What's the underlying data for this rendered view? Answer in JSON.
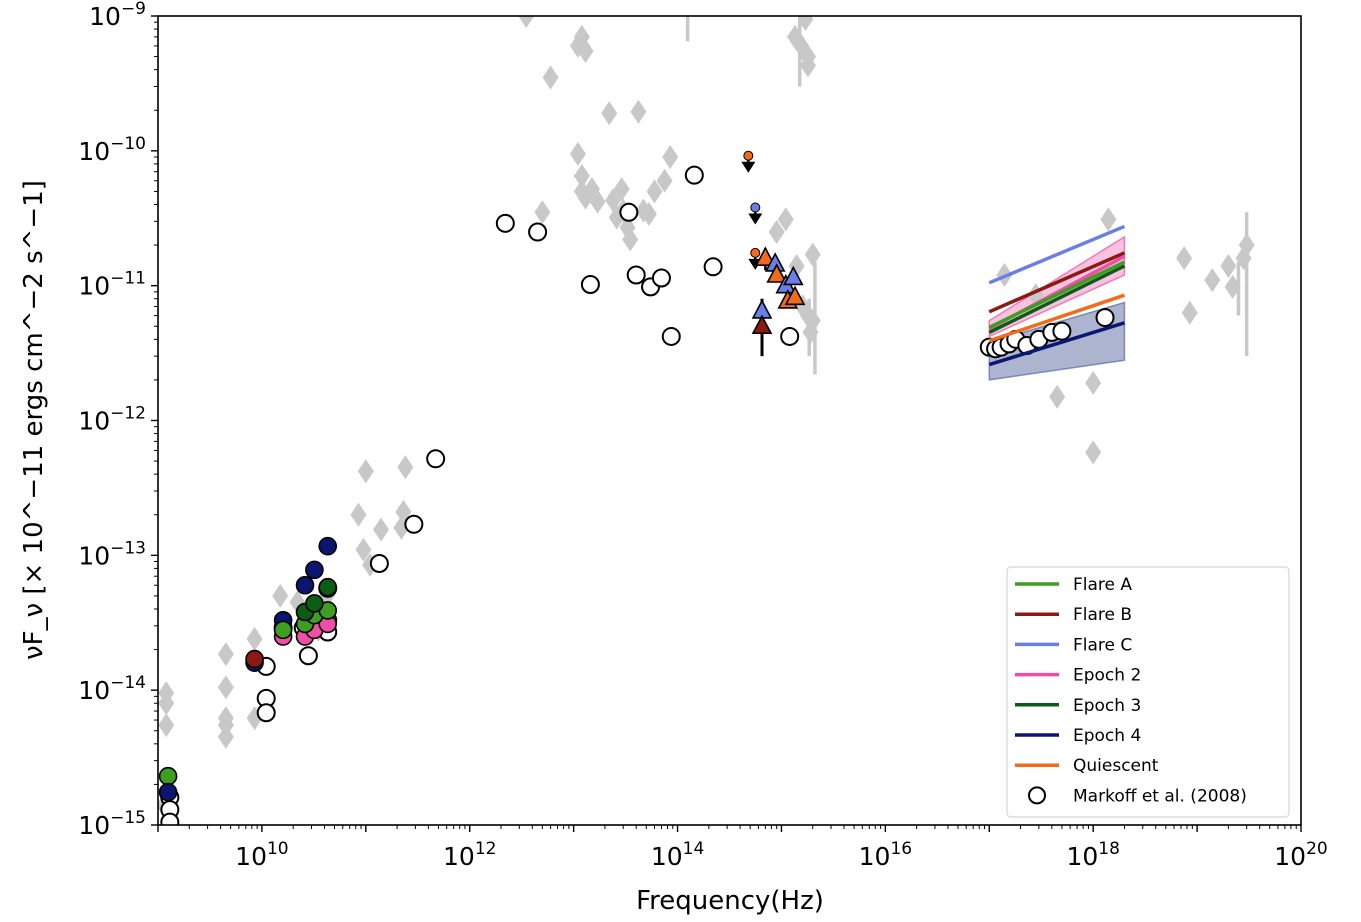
{
  "chart_data": {
    "type": "scatter",
    "xlabel": "Frequency(Hz)",
    "ylabel": "νF_ν [× 10^−11 ergs cm^−2 s^−1]",
    "xscale": "log",
    "yscale": "log",
    "xlim": [
      1000000000.0,
      1e+20
    ],
    "ylim": [
      1e-15,
      1e-09
    ],
    "x_ticks": [
      {
        "base": "10",
        "exp": "10",
        "value": 10000000000.0
      },
      {
        "base": "10",
        "exp": "12",
        "value": 1000000000000.0
      },
      {
        "base": "10",
        "exp": "14",
        "value": 100000000000000.0
      },
      {
        "base": "10",
        "exp": "16",
        "value": 1e+16
      },
      {
        "base": "10",
        "exp": "18",
        "value": 1e+18
      },
      {
        "base": "10",
        "exp": "20",
        "value": 1e+20
      }
    ],
    "y_ticks": [
      {
        "base": "10",
        "exp": "−15",
        "value": 1e-15
      },
      {
        "base": "10",
        "exp": "−14",
        "value": 1e-14
      },
      {
        "base": "10",
        "exp": "−13",
        "value": 1e-13
      },
      {
        "base": "10",
        "exp": "−12",
        "value": 1e-12
      },
      {
        "base": "10",
        "exp": "−11",
        "value": 1e-11
      },
      {
        "base": "10",
        "exp": "−10",
        "value": 1e-10
      },
      {
        "base": "10",
        "exp": "−9",
        "value": 1e-09
      }
    ],
    "legend": {
      "position": "lower right",
      "entries": [
        {
          "label": "Flare A",
          "color": "#3d9e1f",
          "marker": "line"
        },
        {
          "label": "Flare B",
          "color": "#8b1a12",
          "marker": "line"
        },
        {
          "label": "Flare C",
          "color": "#6a7ee8",
          "marker": "line"
        },
        {
          "label": "Epoch 2",
          "color": "#ee4fa6",
          "marker": "line"
        },
        {
          "label": "Epoch 3",
          "color": "#0b5c17",
          "marker": "line"
        },
        {
          "label": "Epoch 4",
          "color": "#0c1670",
          "marker": "line"
        },
        {
          "label": "Quiescent",
          "color": "#f56a1a",
          "marker": "line"
        },
        {
          "label": "Markoff et al. (2008)",
          "color": "#000000",
          "marker": "open-circle"
        }
      ]
    },
    "archival": {
      "color": "#c8c8c8",
      "marker": "diamond",
      "points": [
        [
          1200000000.0,
          9.5e-15
        ],
        [
          1200000000.0,
          8e-15
        ],
        [
          1200000000.0,
          5.5e-15
        ],
        [
          1150000000.0,
          1.4e-15
        ],
        [
          4500000000.0,
          1.85e-14
        ],
        [
          4500000000.0,
          1.05e-14
        ],
        [
          4500000000.0,
          6.2e-15
        ],
        [
          4500000000.0,
          5.5e-15
        ],
        [
          4500000000.0,
          4.5e-15
        ],
        [
          8500000000.0,
          2.4e-14
        ],
        [
          8500000000.0,
          6.2e-15
        ],
        [
          15000000000.0,
          5e-14
        ],
        [
          22000000000.0,
          4.5e-14
        ],
        [
          30000000000.0,
          3.8e-14
        ],
        [
          35000000000.0,
          2.8e-14
        ],
        [
          42000000000.0,
          5e-14
        ],
        [
          85000000000.0,
          2e-13
        ],
        [
          95000000000.0,
          1.1e-13
        ],
        [
          100000000000.0,
          4.2e-13
        ],
        [
          110000000000.0,
          8.5e-14
        ],
        [
          140000000000.0,
          1.55e-13
        ],
        [
          220000000000.0,
          1.6e-13
        ],
        [
          230000000000.0,
          2.1e-13
        ],
        [
          240000000000.0,
          4.5e-13
        ],
        [
          3500000000000.0,
          1e-09
        ],
        [
          6000000000000.0,
          3.5e-10
        ],
        [
          11000000000000.0,
          6e-10
        ],
        [
          12000000000000.0,
          7e-10
        ],
        [
          13000000000000.0,
          5.5e-10
        ],
        [
          11000000000000.0,
          9.5e-11
        ],
        [
          12000000000000.0,
          6.5e-11
        ],
        [
          12000000000000.0,
          5e-11
        ],
        [
          13000000000000.0,
          4.5e-11
        ],
        [
          15000000000000.0,
          5.2e-11
        ],
        [
          17000000000000.0,
          4.2e-11
        ],
        [
          22000000000000.0,
          1.9e-10
        ],
        [
          24000000000000.0,
          4.3e-11
        ],
        [
          26000000000000.0,
          3.2e-11
        ],
        [
          29000000000000.0,
          5.2e-11
        ],
        [
          30000000000000.0,
          3.6e-11
        ],
        [
          33000000000000.0,
          2.7e-11
        ],
        [
          35000000000000.0,
          2.2e-11
        ],
        [
          42000000000000.0,
          1.95e-10
        ],
        [
          47000000000000.0,
          3.6e-11
        ],
        [
          53000000000000.0,
          3.4e-11
        ],
        [
          60000000000000.0,
          5e-11
        ],
        [
          75000000000000.0,
          6e-11
        ],
        [
          85000000000000.0,
          9e-11
        ],
        [
          5000000000000.0,
          3.5e-11
        ],
        [
          900000000000000.0,
          2.5e-11
        ],
        [
          1100000000000000.0,
          3.1e-11
        ],
        [
          1400000000000000.0,
          1.4e-11
        ],
        [
          2000000000000000.0,
          1.7e-11
        ],
        [
          1600000000000000.0,
          7e-12
        ],
        [
          1800000000000000.0,
          6e-12
        ],
        [
          2000000000000000.0,
          5.5e-12
        ],
        [
          1900000000000000.0,
          4.5e-12
        ],
        [
          1350000000000000.0,
          7e-10
        ],
        [
          1550000000000000.0,
          6e-10
        ],
        [
          1700000000000000.0,
          9.5e-10
        ],
        [
          1800000000000000.0,
          5e-10
        ],
        [
          1800000000000000.0,
          4.3e-10
        ],
        [
          1.4e+17,
          1.2e-11
        ],
        [
          2.8e+17,
          8.5e-12
        ],
        [
          4.5e+17,
          1.5e-12
        ],
        [
          1e+18,
          1.9e-12
        ],
        [
          1e+18,
          5.8e-13
        ],
        [
          1.4e+18,
          3.1e-11
        ],
        [
          7.5e+18,
          1.6e-11
        ],
        [
          8.5e+18,
          6.3e-12
        ],
        [
          1.4e+19,
          1.1e-11
        ],
        [
          2e+19,
          1.4e-11
        ],
        [
          2.2e+19,
          9.8e-12
        ],
        [
          2.8e+19,
          1.6e-11
        ],
        [
          3e+19,
          2e-11
        ]
      ],
      "error_bars": [
        [
          1500000000000000.0,
          3e-10,
          1e-09
        ],
        [
          125000000000000.0,
          6.5e-10,
          1e-09
        ],
        [
          2100000000000000.0,
          2.2e-12,
          1.5e-11
        ],
        [
          1850000000000000.0,
          3e-12,
          8e-12
        ],
        [
          3e+19,
          3e-12,
          3.5e-11
        ],
        [
          2.5e+19,
          6e-12,
          1.5e-11
        ]
      ]
    },
    "markoff_2008": [
      [
        1300000000.0,
        1.6e-15
      ],
      [
        1300000000.0,
        1.3e-15
      ],
      [
        1300000000.0,
        1.05e-15
      ],
      [
        11000000000.0,
        1.5e-14
      ],
      [
        11000000000.0,
        8.7e-15
      ],
      [
        11000000000.0,
        6.8e-15
      ],
      [
        16000000000.0,
        2.9e-14
      ],
      [
        25000000000.0,
        2.9e-14
      ],
      [
        28000000000.0,
        1.8e-14
      ],
      [
        32000000000.0,
        3.3e-14
      ],
      [
        43000000000.0,
        5.7e-14
      ],
      [
        43000000000.0,
        3.3e-14
      ],
      [
        43000000000.0,
        2.7e-14
      ],
      [
        135000000000.0,
        8.7e-14
      ],
      [
        290000000000.0,
        1.7e-13
      ],
      [
        470000000000.0,
        5.2e-13
      ],
      [
        2200000000000.0,
        2.9e-11
      ],
      [
        4500000000000.0,
        2.5e-11
      ],
      [
        14500000000000.0,
        1.02e-11
      ],
      [
        34000000000000.0,
        3.5e-11
      ],
      [
        40000000000000.0,
        1.2e-11
      ],
      [
        55000000000000.0,
        9.8e-12
      ],
      [
        70000000000000.0,
        1.14e-11
      ],
      [
        87000000000000.0,
        4.2e-12
      ],
      [
        145000000000000.0,
        6.6e-11
      ],
      [
        220000000000000.0,
        1.38e-11
      ],
      [
        1200000000000000.0,
        4.2e-12
      ],
      [
        1e+17,
        3.5e-12
      ],
      [
        1.15e+17,
        3.4e-12
      ],
      [
        1.3e+17,
        3.5e-12
      ],
      [
        1.55e+17,
        3.7e-12
      ],
      [
        1.8e+17,
        4e-12
      ],
      [
        2.3e+17,
        3.6e-12
      ],
      [
        3e+17,
        4e-12
      ],
      [
        4e+17,
        4.5e-12
      ],
      [
        5e+17,
        4.6e-12
      ],
      [
        1.3e+18,
        5.8e-12
      ]
    ],
    "radio_points": [
      {
        "series": "Flare A",
        "color": "#3d9e1f",
        "points": [
          [
            1250000000.0,
            2.3e-15
          ]
        ]
      },
      {
        "series": "Epoch 4",
        "color": "#0c1670",
        "points": [
          [
            1250000000.0,
            1.75e-15
          ],
          [
            8500000000.0,
            1.6e-14
          ],
          [
            16000000000.0,
            3.3e-14
          ],
          [
            26000000000.0,
            6e-14
          ],
          [
            32000000000.0,
            7.8e-14
          ],
          [
            43000000000.0,
            1.17e-13
          ]
        ]
      },
      {
        "series": "Flare B",
        "color": "#8b1a12",
        "points": [
          [
            8500000000.0,
            1.7e-14
          ]
        ]
      },
      {
        "series": "Epoch 2",
        "color": "#ee4fa6",
        "points": [
          [
            16000000000.0,
            2.5e-14
          ],
          [
            26000000000.0,
            2.5e-14
          ],
          [
            32000000000.0,
            2.8e-14
          ],
          [
            43000000000.0,
            3.1e-14
          ]
        ]
      },
      {
        "series": "Flare A",
        "color": "#3d9e1f",
        "points": [
          [
            16000000000.0,
            2.8e-14
          ],
          [
            26000000000.0,
            3.1e-14
          ],
          [
            32000000000.0,
            3.6e-14
          ],
          [
            43000000000.0,
            3.9e-14
          ]
        ]
      },
      {
        "series": "Epoch 3",
        "color": "#0b5c17",
        "points": [
          [
            26000000000.0,
            3.8e-14
          ],
          [
            32000000000.0,
            4.4e-14
          ],
          [
            43000000000.0,
            5.8e-14
          ]
        ]
      }
    ],
    "ir_upper_limits": [
      {
        "color": "#f56a1a",
        "x": 480000000000000.0,
        "y": 9.2e-11
      },
      {
        "color": "#6a7ee8",
        "x": 560000000000000.0,
        "y": 3.8e-11
      },
      {
        "color": "#f56a1a",
        "x": 560000000000000.0,
        "y": 1.75e-11
      }
    ],
    "ir_triangles": [
      {
        "color": "#f56a1a",
        "x": 700000000000000.0,
        "y": 1.6e-11
      },
      {
        "color": "#6a7ee8",
        "x": 870000000000000.0,
        "y": 1.45e-11
      },
      {
        "color": "#f56a1a",
        "x": 900000000000000.0,
        "y": 1.2e-11
      },
      {
        "color": "#6a7ee8",
        "x": 1100000000000000.0,
        "y": 1e-11
      },
      {
        "color": "#f56a1a",
        "x": 1150000000000000.0,
        "y": 7.7e-12
      },
      {
        "color": "#6a7ee8",
        "x": 1300000000000000.0,
        "y": 1.15e-11
      },
      {
        "color": "#f56a1a",
        "x": 1350000000000000.0,
        "y": 8.2e-12
      },
      {
        "color": "#6a7ee8",
        "x": 650000000000000.0,
        "y": 6.5e-12
      },
      {
        "color": "#8b1a12",
        "x": 650000000000000.0,
        "y": 5e-12
      }
    ],
    "xray_models": [
      {
        "series": "Flare C",
        "color": "#6a7ee8",
        "x": [
          1e+17,
          2e+18
        ],
        "y": [
          1.05e-11,
          2.75e-11
        ]
      },
      {
        "series": "Flare B",
        "color": "#8b1a12",
        "x": [
          1e+17,
          2e+18
        ],
        "y": [
          6.4e-12,
          1.75e-11
        ]
      },
      {
        "series": "Epoch 2",
        "color": "#ee4fa6",
        "x": [
          1e+17,
          2e+18
        ],
        "y": [
          4.8e-12,
          1.65e-11
        ]
      },
      {
        "series": "Flare A",
        "color": "#3d9e1f",
        "x": [
          1e+17,
          2e+18
        ],
        "y": [
          4.9e-12,
          1.5e-11
        ]
      },
      {
        "series": "Epoch 3",
        "color": "#0b5c17",
        "x": [
          1e+17,
          2e+18
        ],
        "y": [
          4.5e-12,
          1.4e-11
        ]
      },
      {
        "series": "Quiescent",
        "color": "#f56a1a",
        "x": [
          1e+17,
          2e+18
        ],
        "y": [
          3.9e-12,
          8.5e-12
        ]
      },
      {
        "series": "Epoch 4",
        "color": "#0c1670",
        "x": [
          1e+17,
          2e+18
        ],
        "y": [
          2.6e-12,
          5.3e-12
        ]
      }
    ],
    "xray_bands": [
      {
        "series": "Epoch 4",
        "color": "#5a6aa0",
        "opacity": 0.5,
        "x": [
          1e+17,
          2e+18
        ],
        "upper": [
          3.8e-12,
          7.5e-12
        ],
        "lower": [
          2e-12,
          2.8e-12
        ]
      },
      {
        "series": "Epoch 2",
        "color": "#ee4fa6",
        "opacity": 0.35,
        "x": [
          1e+17,
          2e+18
        ],
        "upper": [
          5.5e-12,
          2.3e-11
        ],
        "lower": [
          4.2e-12,
          1.2e-11
        ]
      }
    ]
  }
}
